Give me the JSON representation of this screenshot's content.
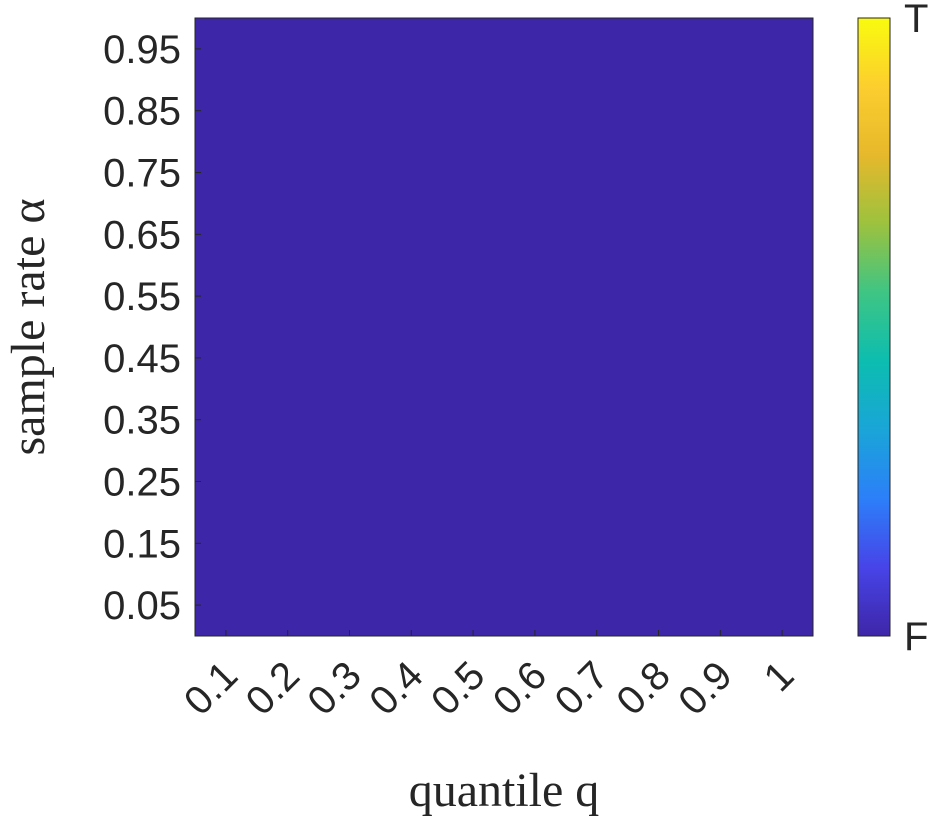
{
  "chart_data": {
    "type": "heatmap",
    "x_label": "quantile q",
    "y_label": "sample rate α",
    "x_categories": [
      "0.1",
      "0.2",
      "0.3",
      "0.4",
      "0.5",
      "0.6",
      "0.7",
      "0.8",
      "0.9",
      "1"
    ],
    "y_categories": [
      "0.05",
      "0.15",
      "0.25",
      "0.35",
      "0.45",
      "0.55",
      "0.65",
      "0.75",
      "0.85",
      "0.95"
    ],
    "values": [
      [
        0,
        0,
        0,
        0,
        0,
        0,
        0,
        0,
        0,
        0
      ],
      [
        0,
        0,
        0,
        0,
        0,
        0,
        0,
        0,
        0,
        0
      ],
      [
        0,
        0,
        0,
        0,
        0,
        0,
        0,
        0,
        0,
        0
      ],
      [
        0,
        0,
        0,
        0,
        0,
        0,
        0,
        0,
        0,
        0
      ],
      [
        0,
        0,
        0,
        0,
        0,
        0,
        0,
        0,
        0,
        0
      ],
      [
        0,
        0,
        0,
        0,
        0,
        0,
        0,
        0,
        0,
        0
      ],
      [
        0,
        0,
        0,
        0,
        0,
        0,
        0,
        0,
        0,
        0
      ],
      [
        0,
        0,
        0,
        0,
        0,
        0,
        0,
        0,
        0,
        0
      ],
      [
        0,
        0,
        0,
        0,
        0,
        0,
        0,
        0,
        0,
        0
      ],
      [
        0,
        0,
        0,
        0,
        0,
        0,
        0,
        0,
        0,
        0
      ]
    ],
    "clim": [
      0,
      1
    ],
    "cticks": [
      {
        "value": 0,
        "label": "F"
      },
      {
        "value": 1,
        "label": "T"
      }
    ],
    "colormap": [
      "#3e26a8",
      "#4744e8",
      "#2c7ff9",
      "#1aa5d8",
      "#0cbdb0",
      "#3ec584",
      "#9cc23e",
      "#e6b82c",
      "#fcce2e",
      "#f9fb0e"
    ]
  }
}
